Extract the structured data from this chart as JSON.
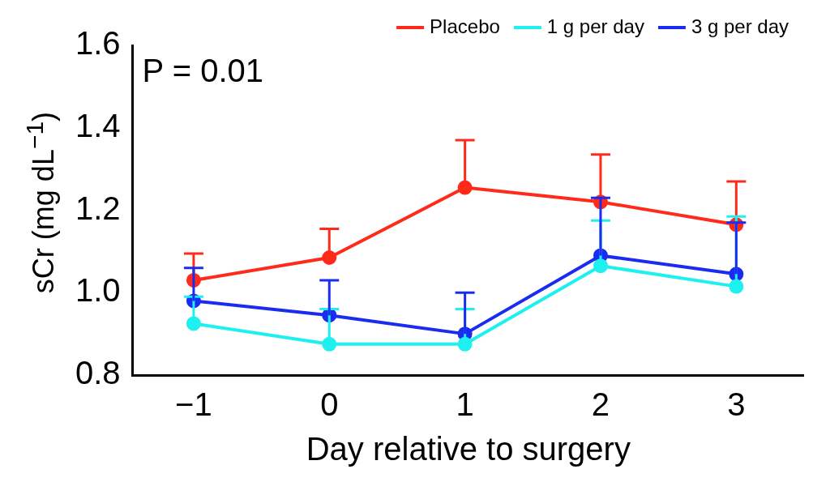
{
  "chart_data": {
    "type": "line",
    "xlabel": "Day relative to surgery",
    "ylabel": "sCr (mg dL$^{−1}$)",
    "x": [
      -1,
      0,
      1,
      2,
      3
    ],
    "xlim": [
      -1.45,
      3.5
    ],
    "xticks": [
      {
        "value": -1,
        "label": "−1"
      },
      0,
      1,
      2,
      3
    ],
    "ylim": [
      0.8,
      1.6
    ],
    "yticks": [
      {
        "value": 0.8,
        "label": "0.8"
      },
      {
        "value": 1.0,
        "label": "1.0"
      },
      {
        "value": 1.2,
        "label": "1.2"
      },
      {
        "value": 1.4,
        "label": "1.4"
      },
      {
        "value": 1.6,
        "label": "1.6"
      }
    ],
    "grid": false,
    "legend": "top",
    "marker": "circle",
    "line_style": "solid",
    "annotations": [
      "P = 0.01"
    ],
    "series": [
      {
        "name": "Placebo",
        "color": "#ff2a1a",
        "values": [
          1.03,
          1.085,
          1.255,
          1.22,
          1.165
        ],
        "errors": [
          [
            1.03,
            1.095
          ],
          [
            1.085,
            1.155
          ],
          [
            1.255,
            1.37
          ],
          [
            1.22,
            1.335
          ],
          [
            1.165,
            1.27
          ]
        ]
      },
      {
        "name": "1 g per day",
        "color": "#1ef0f0",
        "values": [
          0.925,
          0.875,
          0.875,
          1.065,
          1.015
        ],
        "errors": [
          [
            0.925,
            0.99
          ],
          [
            0.875,
            0.96
          ],
          [
            0.875,
            0.96
          ],
          [
            1.065,
            1.175
          ],
          [
            1.015,
            1.185
          ]
        ]
      },
      {
        "name": "3 g per day",
        "color": "#1a2cf0",
        "values": [
          0.98,
          0.945,
          0.9,
          1.09,
          1.045
        ],
        "errors": [
          [
            0.98,
            1.06
          ],
          [
            0.945,
            1.03
          ],
          [
            0.9,
            1.0
          ],
          [
            1.09,
            1.23
          ],
          [
            1.045,
            1.17
          ]
        ]
      }
    ]
  }
}
